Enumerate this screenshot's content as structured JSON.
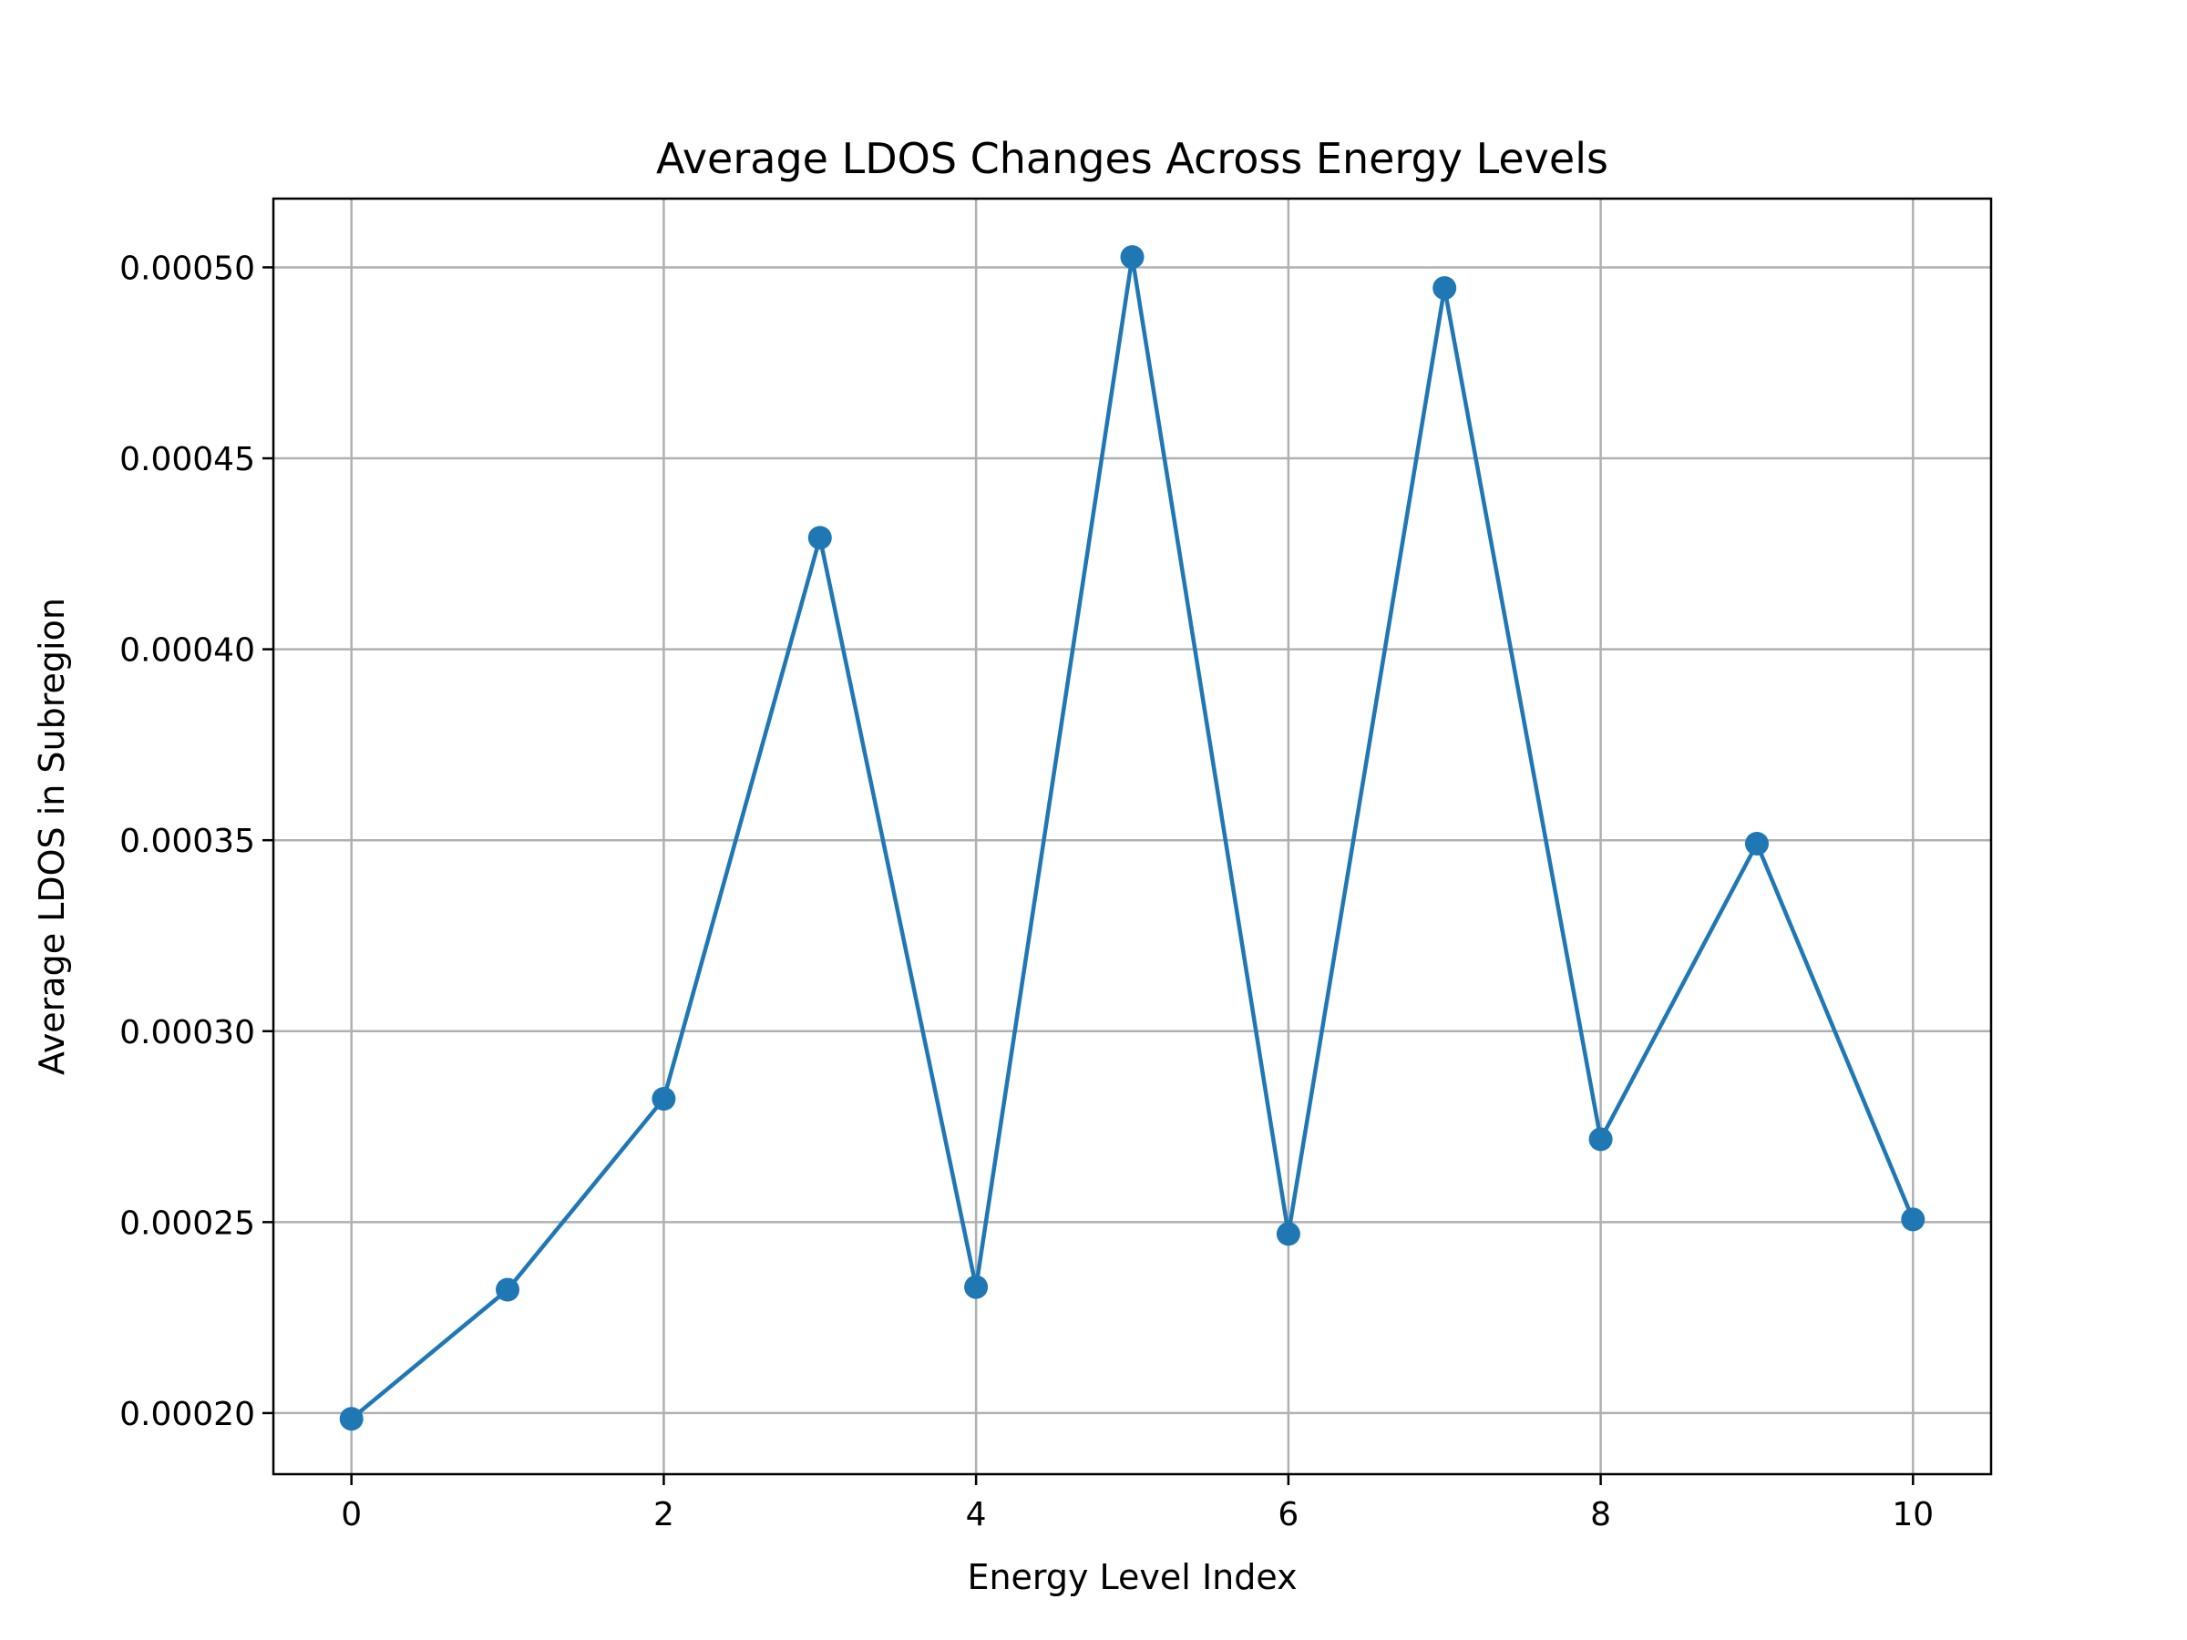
{
  "chart_data": {
    "type": "line",
    "title": "Average LDOS Changes Across Energy Levels",
    "xlabel": "Energy Level Index",
    "ylabel": "Average LDOS in Subregion",
    "x": [
      0,
      1,
      2,
      3,
      4,
      5,
      6,
      7,
      8,
      9,
      10
    ],
    "series": [
      {
        "values": [
          0.0001985,
          0.0002323,
          0.0002823,
          0.0004292,
          0.000233,
          0.0005027,
          0.0002469,
          0.0004946,
          0.0002717,
          0.0003491,
          0.0002507
        ],
        "color": "#1f77b4",
        "marker": "circle"
      }
    ],
    "xlim": [
      -0.5,
      10.5
    ],
    "ylim": [
      0.000184,
      0.000518
    ],
    "xticks": [
      0,
      2,
      4,
      6,
      8,
      10
    ],
    "xtick_labels": [
      "0",
      "2",
      "4",
      "6",
      "8",
      "10"
    ],
    "yticks": [
      0.0002,
      0.00025,
      0.0003,
      0.00035,
      0.0004,
      0.00045,
      0.0005
    ],
    "ytick_labels": [
      "0.00020",
      "0.00025",
      "0.00030",
      "0.00035",
      "0.00040",
      "0.00045",
      "0.00050"
    ],
    "grid": true
  }
}
